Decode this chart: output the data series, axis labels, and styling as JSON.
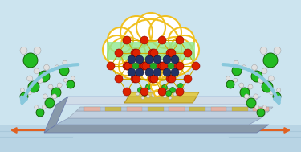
{
  "bg_color": "#cce4ef",
  "cloud_fill": "#ffffff",
  "cloud_outline": "#f0c020",
  "cloud_tail_color": "#f0c020",
  "highlight_color": "#90e890",
  "red_atom": "#dd2200",
  "yellow_atom": "#ddbb00",
  "dark_atom": "#223366",
  "green_atom": "#22aa22",
  "white_atom": "#e8e8e8",
  "bond_color": "#ccaa00",
  "water_green": "#22bb22",
  "water_bond": "#aaaaaa",
  "water_h": "#e0e0e0",
  "arrow_blue": "#88c8dc",
  "arrow_orange": "#e06020",
  "chip_base_color": "#b0c4d8",
  "chip_side_color": "#8899aa",
  "chip_top_color": "#d0dce8",
  "chip_electrode_pink": "#e8b0a0",
  "chip_gold": "#c8b840",
  "chip_sensor_gold": "#c8b030",
  "water_surface": "#b8d4e4",
  "coil_color": "#d4a020"
}
